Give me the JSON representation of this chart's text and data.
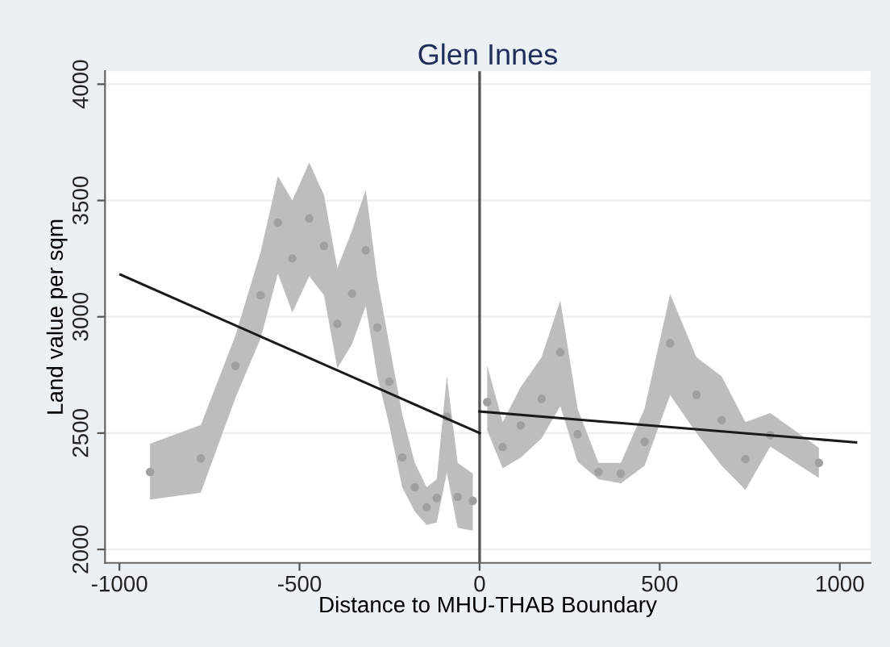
{
  "chart_data": {
    "type": "scatter",
    "title": "Glen Innes",
    "xlabel": "Distance to MHU-THAB Boundary",
    "ylabel": "Land value per sqm",
    "xlim": [
      -1040,
      1085
    ],
    "ylim": [
      1942,
      4056
    ],
    "xticks": [
      -1000,
      -500,
      0,
      500,
      1000
    ],
    "yticks": [
      2000,
      2500,
      3000,
      3500,
      4000
    ],
    "grid": "y",
    "series": [
      {
        "color": "#a0a0a0",
        "marker": "circle",
        "x": [
          -915,
          -774,
          -678,
          -608,
          -560,
          -520,
          -473,
          -432,
          -395,
          -354,
          -316,
          -284,
          -251,
          -215,
          -180,
          -147,
          -119,
          -91,
          -61,
          -19
        ],
        "values": [
          2333,
          2391,
          2789,
          3093,
          3405,
          3251,
          3423,
          3305,
          2970,
          3100,
          3286,
          2954,
          2721,
          2395,
          2267,
          2181,
          2221,
          2570,
          2226,
          2209
        ],
        "upper": [
          2454,
          2535,
          2919,
          3279,
          3605,
          3500,
          3663,
          3523,
          3209,
          3372,
          3547,
          3163,
          2884,
          2581,
          2372,
          2267,
          2302,
          2744,
          2372,
          2326
        ],
        "lower": [
          2214,
          2244,
          2651,
          2907,
          3186,
          3019,
          3174,
          3093,
          2779,
          2884,
          3047,
          2744,
          2535,
          2267,
          2163,
          2105,
          2116,
          2330,
          2093,
          2081
        ]
      },
      {
        "color": "#a0a0a0",
        "marker": "circle",
        "x": [
          21,
          64,
          114,
          172,
          224,
          272,
          330,
          392,
          458,
          529,
          602,
          672,
          738,
          807,
          942
        ],
        "values": [
          2633,
          2440,
          2533,
          2647,
          2847,
          2495,
          2333,
          2326,
          2463,
          2886,
          2665,
          2556,
          2388,
          2491,
          2372
        ],
        "upper": [
          2791,
          2547,
          2698,
          2826,
          3070,
          2605,
          2372,
          2372,
          2605,
          3098,
          2826,
          2744,
          2547,
          2586,
          2437
        ],
        "lower": [
          2512,
          2349,
          2395,
          2477,
          2616,
          2377,
          2302,
          2284,
          2360,
          2663,
          2500,
          2360,
          2256,
          2442,
          2307
        ]
      },
      {
        "type": "line",
        "color": "#1a1a1a",
        "x": [
          -997,
          0
        ],
        "values": [
          3181,
          2500
        ]
      },
      {
        "type": "line",
        "color": "#1a1a1a",
        "x": [
          0,
          1045
        ],
        "values": [
          2593,
          2460
        ]
      }
    ],
    "ref_lines": [
      {
        "axis": "x",
        "value": 0,
        "color": "#555555"
      }
    ]
  }
}
